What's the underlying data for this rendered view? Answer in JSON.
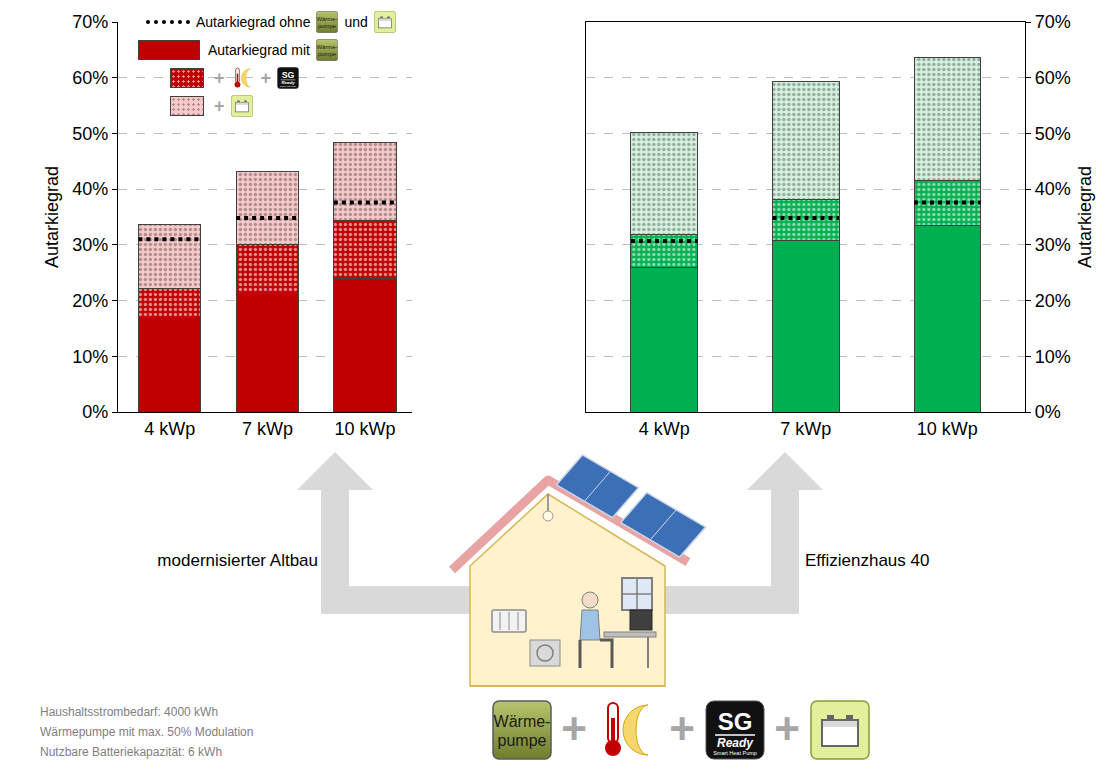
{
  "chart_data": [
    {
      "type": "bar",
      "stacked": true,
      "title": "modernisierter Altbau",
      "categories": [
        "4 kWp",
        "7 kWp",
        "10 kWp"
      ],
      "series": [
        {
          "name": "Autarkiegrad ohne",
          "type": "line",
          "line_style": "dotted",
          "color": "#000000",
          "values": [
            31,
            34.8,
            37.6
          ]
        },
        {
          "name": "Autarkiegrad mit",
          "color": "#c00000",
          "values": [
            17,
            21.2,
            23.9
          ]
        },
        {
          "name": "+",
          "color": "#c00000",
          "values": [
            5.2,
            8.8,
            10.5
          ]
        },
        {
          "name": "+",
          "color": "#f7c9c9",
          "values": [
            11.4,
            13.2,
            13.9
          ]
        }
      ],
      "ylabel": "Autarkiegrad",
      "ylim": [
        0,
        70
      ],
      "yticks": [
        {
          "value": 0,
          "label": "0%"
        },
        {
          "value": 10,
          "label": "10%"
        },
        {
          "value": 20,
          "label": "20%"
        },
        {
          "value": 30,
          "label": "30%"
        },
        {
          "value": 40,
          "label": "40%"
        },
        {
          "value": 50,
          "label": "50%"
        },
        {
          "value": 60,
          "label": "60%"
        },
        {
          "value": 70,
          "label": "70%"
        }
      ],
      "grid": true,
      "legend": "top-left"
    },
    {
      "type": "bar",
      "stacked": true,
      "title": "Effizienzhaus 40",
      "categories": [
        "4 kWp",
        "7 kWp",
        "10 kWp"
      ],
      "series": [
        {
          "type": "line",
          "line_style": "dotted",
          "color": "#000000",
          "values": [
            30.7,
            34.8,
            37.6
          ]
        },
        {
          "color": "#00b050",
          "values": [
            26,
            30.7,
            33.4
          ]
        },
        {
          "color": "#00b050",
          "values": [
            5.8,
            7.4,
            8.2
          ]
        },
        {
          "color": "#d4f2de",
          "values": [
            18.4,
            21.3,
            22.1
          ]
        }
      ],
      "ylabel": "Autarkiegrad",
      "ylim": [
        0,
        70
      ],
      "yticks": [
        {
          "value": 0,
          "label": "0%"
        },
        {
          "value": 10,
          "label": "10%"
        },
        {
          "value": 20,
          "label": "20%"
        },
        {
          "value": 30,
          "label": "30%"
        },
        {
          "value": 40,
          "label": "40%"
        },
        {
          "value": 50,
          "label": "50%"
        },
        {
          "value": 60,
          "label": "60%"
        },
        {
          "value": 70,
          "label": "70%"
        }
      ],
      "grid": true
    }
  ],
  "icons": {
    "heat_pump": [
      "Wärme-",
      "pumpe"
    ],
    "sg": "SG",
    "sg_sub": "Ready",
    "sg_small": "Smart Heat Pump"
  },
  "connectors": {
    "and": "und",
    "plus": "+"
  },
  "notes": [
    "Haushaltsstrombedarf: 4000 kWh",
    "Wärmepumpe mit max. 50% Modulation",
    "Nutzbare Batteriekapazität: 6 kWh"
  ]
}
